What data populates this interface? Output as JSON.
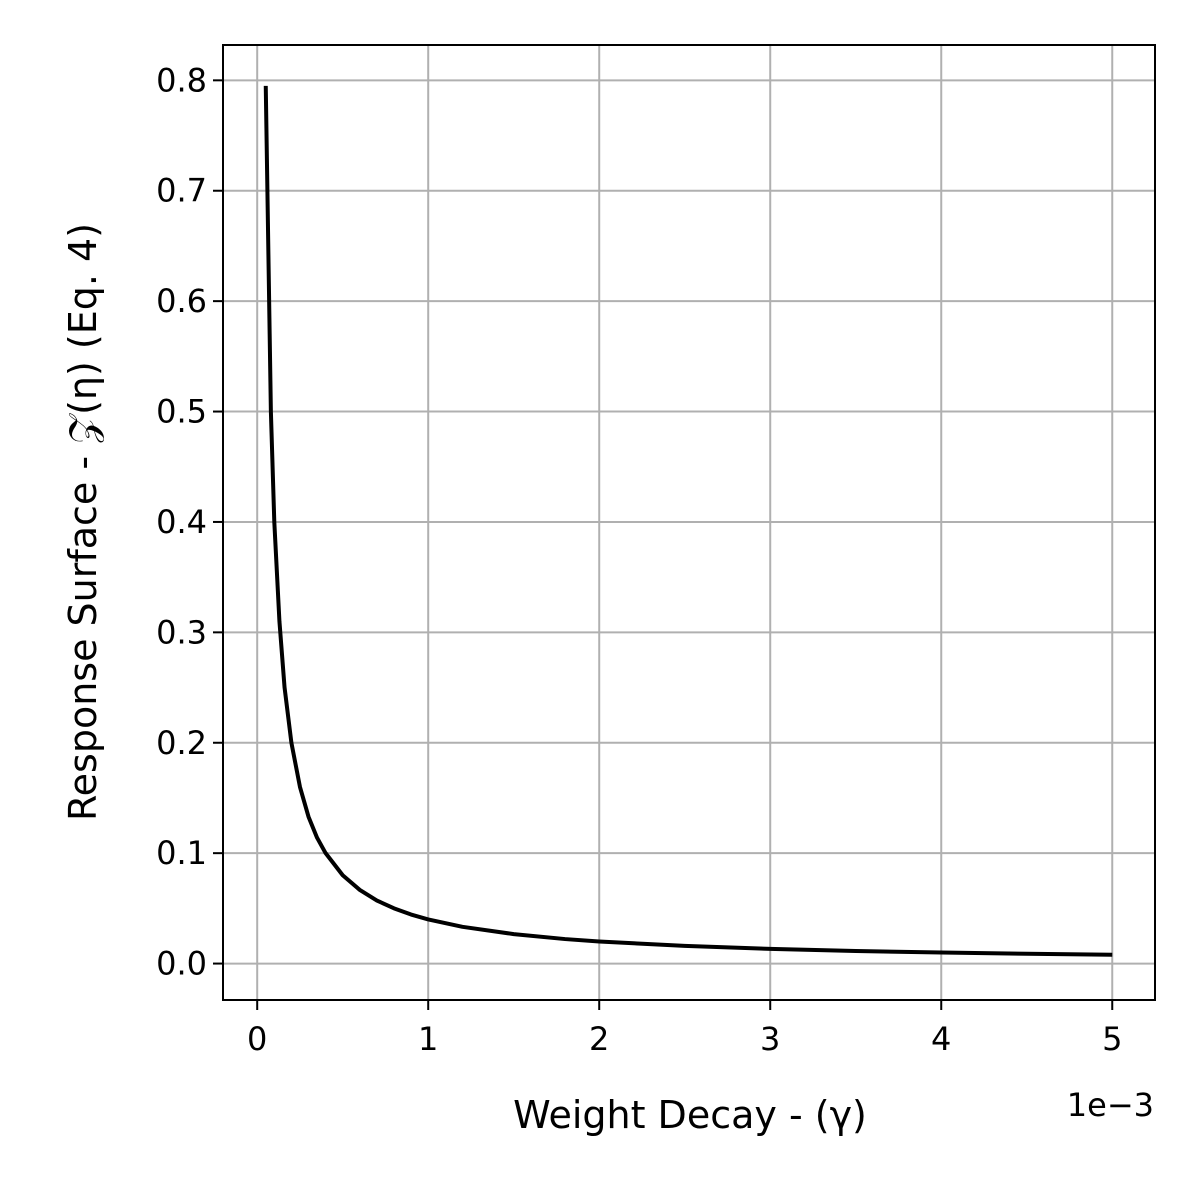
{
  "chart_data": {
    "type": "line",
    "xlabel": "Weight Decay - (γ)",
    "ylabel": "Response Surface - 𝒵(η) (Eq. 4)",
    "x_offset_text": "1e−3",
    "xlim": [
      -0.0002,
      0.00525
    ],
    "ylim": [
      -0.033,
      0.832
    ],
    "x_ticks": [
      0,
      0.001,
      0.002,
      0.003,
      0.004,
      0.005
    ],
    "x_tick_labels": [
      "0",
      "1",
      "2",
      "3",
      "4",
      "5"
    ],
    "y_ticks": [
      0.0,
      0.1,
      0.2,
      0.3,
      0.4,
      0.5,
      0.6,
      0.7,
      0.8
    ],
    "y_tick_labels": [
      "0.0",
      "0.1",
      "0.2",
      "0.3",
      "0.4",
      "0.5",
      "0.6",
      "0.7",
      "0.8"
    ],
    "grid": true,
    "line_color": "#000000",
    "grid_color": "#b0b0b0",
    "series": [
      {
        "x": [
          5e-05,
          8e-05,
          0.0001,
          0.00013,
          0.00016,
          0.0002,
          0.00025,
          0.0003,
          0.00035,
          0.0004,
          0.0005,
          0.0006,
          0.0007,
          0.0008,
          0.0009,
          0.001,
          0.0012,
          0.0015,
          0.0018,
          0.002,
          0.0025,
          0.003,
          0.0035,
          0.004,
          0.0045,
          0.005
        ],
        "y": [
          0.795,
          0.5,
          0.4,
          0.31,
          0.25,
          0.2,
          0.16,
          0.133,
          0.114,
          0.1,
          0.08,
          0.0667,
          0.0571,
          0.05,
          0.0444,
          0.04,
          0.0333,
          0.0267,
          0.0222,
          0.02,
          0.016,
          0.0133,
          0.0114,
          0.01,
          0.0089,
          0.008
        ]
      }
    ]
  }
}
